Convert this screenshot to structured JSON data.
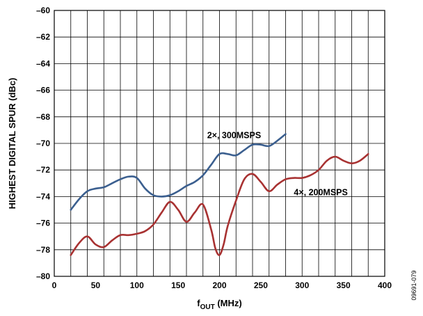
{
  "chart_data": {
    "type": "line",
    "title": "",
    "xlabel": {
      "main": "f",
      "sub": "OUT",
      "rest": " (MHz)"
    },
    "ylabel": "HIGHEST DIGITAL SPUR (dBc)",
    "xlim": [
      0,
      400
    ],
    "ylim": [
      -80,
      -60
    ],
    "xticks": [
      0,
      50,
      100,
      150,
      200,
      250,
      300,
      350,
      400
    ],
    "yticks": [
      -80,
      -78,
      -76,
      -74,
      -72,
      -70,
      -68,
      -66,
      -64,
      -62,
      -60
    ],
    "ytick_labels": [
      "–80",
      "–78",
      "–76",
      "–74",
      "–72",
      "–70",
      "–68",
      "–66",
      "–64",
      "–62",
      "–60"
    ],
    "x_minor_step": 20,
    "grid": true,
    "figure_id": "09691-079",
    "series": [
      {
        "name": "2×, 300MSPS",
        "color": "#3b5f8f",
        "x": [
          20,
          30,
          40,
          50,
          60,
          70,
          80,
          90,
          100,
          110,
          120,
          130,
          140,
          150,
          160,
          170,
          180,
          190,
          200,
          210,
          220,
          230,
          240,
          250,
          260,
          270,
          280
        ],
        "y": [
          -75.0,
          -74.2,
          -73.6,
          -73.4,
          -73.3,
          -73.0,
          -72.7,
          -72.5,
          -72.6,
          -73.4,
          -73.9,
          -74.0,
          -73.9,
          -73.6,
          -73.2,
          -72.9,
          -72.4,
          -71.6,
          -70.8,
          -70.8,
          -70.9,
          -70.5,
          -70.1,
          -70.1,
          -70.2,
          -69.8,
          -69.3
        ]
      },
      {
        "name": "4×, 200MSPS",
        "color": "#a83232",
        "x": [
          20,
          30,
          40,
          50,
          60,
          70,
          80,
          90,
          100,
          110,
          120,
          130,
          140,
          150,
          160,
          170,
          180,
          190,
          195,
          200,
          205,
          210,
          220,
          230,
          240,
          250,
          260,
          270,
          280,
          290,
          300,
          310,
          320,
          330,
          340,
          350,
          360,
          370,
          380
        ],
        "y": [
          -78.4,
          -77.5,
          -77.0,
          -77.6,
          -77.8,
          -77.3,
          -76.9,
          -76.9,
          -76.8,
          -76.6,
          -76.1,
          -75.2,
          -74.4,
          -75.0,
          -75.9,
          -75.2,
          -74.6,
          -76.5,
          -77.9,
          -78.4,
          -77.6,
          -76.2,
          -74.3,
          -72.7,
          -72.3,
          -72.9,
          -73.6,
          -73.1,
          -72.7,
          -72.6,
          -72.6,
          -72.4,
          -72.0,
          -71.3,
          -71.0,
          -71.3,
          -71.5,
          -71.3,
          -70.8
        ]
      }
    ]
  }
}
